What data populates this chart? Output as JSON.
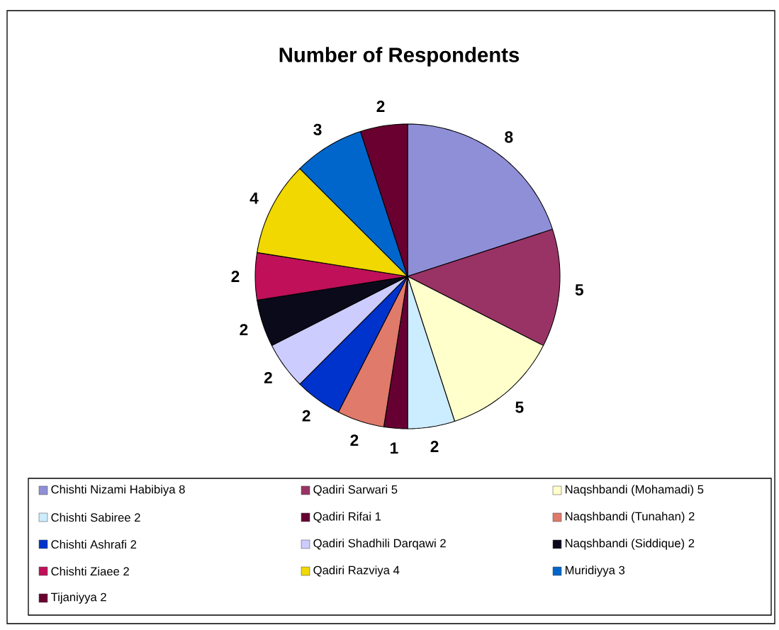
{
  "chart_data": {
    "type": "pie",
    "title": "Number of Respondents",
    "categories": [
      "Chishti Nizami Habibiya 8",
      "Qadiri Sarwari 5",
      "Naqshbandi (Mohamadi) 5",
      "Chishti Sabiree 2",
      "Qadiri Rifai 1",
      "Naqshbandi (Tunahan) 2",
      "Chishti Ashrafi 2",
      "Qadiri Shadhili Darqawi 2",
      "Naqshbandi (Siddique) 2",
      "Chishti Ziaee 2",
      "Qadiri Razviya 4",
      "Muridiyya 3",
      "Tijaniyya 2"
    ],
    "values": [
      8,
      5,
      5,
      2,
      1,
      2,
      2,
      2,
      2,
      2,
      4,
      3,
      2
    ],
    "colors": [
      "#8f8fd8",
      "#993366",
      "#ffffcc",
      "#ccecff",
      "#660033",
      "#e07a6a",
      "#0033cc",
      "#ccccff",
      "#0a0a1a",
      "#c0105a",
      "#f0d800",
      "#0066cc",
      "#6a0030"
    ],
    "data_labels": true,
    "legend": "bottom"
  }
}
